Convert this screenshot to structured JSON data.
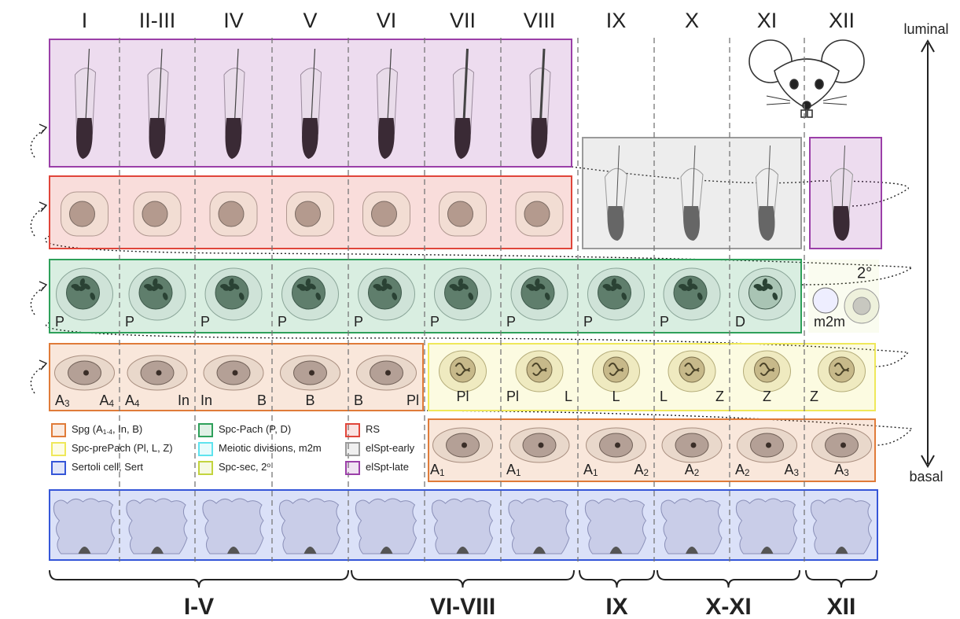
{
  "stages": [
    "I",
    "II-III",
    "IV",
    "V",
    "VI",
    "VII",
    "VIII",
    "IX",
    "X",
    "XI",
    "XII"
  ],
  "orientation": {
    "top": "luminal",
    "bottom": "basal"
  },
  "legend": [
    {
      "label": [
        "Spg (A",
        {
          "sub": "1-4"
        },
        ", In, B)"
      ],
      "color": "#e07b39"
    },
    {
      "label": [
        "Spc-Pach (P, D)"
      ],
      "color": "#2ea05a"
    },
    {
      "label": [
        "RS"
      ],
      "color": "#e0453a"
    },
    {
      "label": [
        "Spc-prePach (Pl, L, Z)"
      ],
      "color": "#efe85a"
    },
    {
      "label": [
        "Meiotic divisions, m2m"
      ],
      "color": "#5fe3ee"
    },
    {
      "label": [
        "elSpt-early"
      ],
      "color": "#9a9a9a"
    },
    {
      "label": [
        "Sertoli cell, Sert"
      ],
      "color": "#3556d8"
    },
    {
      "label": [
        "Spc-sec, 2",
        {
          "sup": "o"
        }
      ],
      "color": "#c3d43e"
    },
    {
      "label": [
        "elSpt-late"
      ],
      "color": "#9b3fa8"
    }
  ],
  "pachytene_labels": [
    {
      "left": [
        "P"
      ]
    },
    {
      "left": [
        "P"
      ]
    },
    {
      "left": [
        "P"
      ]
    },
    {
      "left": [
        "P"
      ]
    },
    {
      "left": [
        "P"
      ]
    },
    {
      "left": [
        "P"
      ]
    },
    {
      "left": [
        "P"
      ]
    },
    {
      "left": [
        "P"
      ]
    },
    {
      "left": [
        "P"
      ]
    },
    {
      "left": [
        "D"
      ]
    }
  ],
  "meiosis_labels": {
    "m2m": "m2m",
    "secondary": "2°"
  },
  "spg_early_labels": [
    {
      "left": [
        "A",
        {
          "sub": "3"
        }
      ],
      "right": [
        "A",
        {
          "sub": "4"
        }
      ]
    },
    {
      "left": [
        "A",
        {
          "sub": "4"
        }
      ],
      "right": [
        "In"
      ]
    },
    {
      "left": [
        "In"
      ],
      "right": [
        "B"
      ]
    },
    {
      "center": [
        "B"
      ]
    },
    {
      "left": [
        "B"
      ],
      "right": [
        "Pl"
      ]
    }
  ],
  "prepachytene_labels": [
    {
      "center": [
        "Pl"
      ]
    },
    {
      "left": [
        "Pl"
      ],
      "right": [
        "L"
      ]
    },
    {
      "center": [
        "L"
      ]
    },
    {
      "left": [
        "L"
      ],
      "right": [
        "Z"
      ]
    },
    {
      "center": [
        "Z"
      ]
    },
    {
      "left": [
        "Z"
      ]
    }
  ],
  "spg_late_labels": [
    {
      "left": [
        "A",
        {
          "sub": "1"
        }
      ]
    },
    {
      "left": [
        "A",
        {
          "sub": "1"
        }
      ]
    },
    {
      "left": [
        "A",
        {
          "sub": "1"
        }
      ],
      "right": [
        "A",
        {
          "sub": "2"
        }
      ]
    },
    {
      "center": [
        "A",
        {
          "sub": "2"
        }
      ]
    },
    {
      "left": [
        "A",
        {
          "sub": "2"
        }
      ],
      "right": [
        "A",
        {
          "sub": "3"
        }
      ]
    },
    {
      "center": [
        "A",
        {
          "sub": "3"
        }
      ]
    }
  ],
  "groups": [
    "I-V",
    "VI-VIII",
    "IX",
    "X-XI",
    "XII"
  ]
}
